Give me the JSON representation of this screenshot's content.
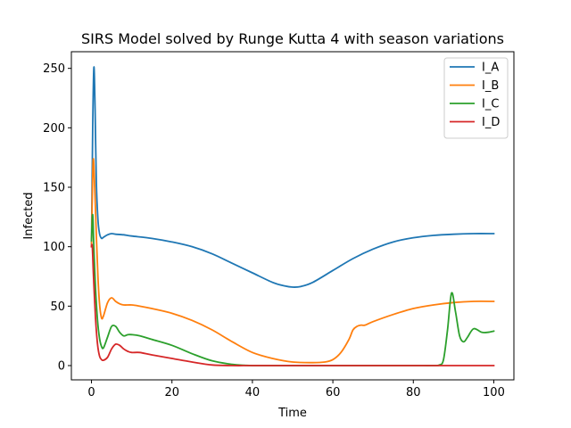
{
  "chart_data": {
    "type": "line",
    "title": "SIRS Model solved by Runge Kutta 4 with season variations",
    "xlabel": "Time",
    "ylabel": "Infected",
    "xlim": [
      -5,
      105
    ],
    "ylim": [
      -12,
      264
    ],
    "xticks": [
      0,
      20,
      40,
      60,
      80,
      100
    ],
    "yticks": [
      0,
      50,
      100,
      150,
      200,
      250
    ],
    "legend_position": "top-right",
    "grid": false,
    "series": [
      {
        "name": "I_A",
        "color": "#1f77b4",
        "x": [
          0,
          0.3,
          0.6,
          0.9,
          1.2,
          1.6,
          2,
          2.5,
          3,
          4,
          5,
          6,
          8,
          10,
          15,
          20,
          25,
          30,
          35,
          40,
          45,
          48,
          50,
          52,
          55,
          60,
          65,
          70,
          75,
          80,
          85,
          90,
          95,
          100
        ],
        "y": [
          100,
          200,
          251,
          215,
          155,
          123,
          111,
          107,
          108,
          110,
          111,
          110.5,
          110,
          109,
          107,
          104,
          100,
          94,
          86,
          78,
          70,
          67,
          66,
          66.5,
          70,
          80,
          90,
          98,
          104,
          107.5,
          109.5,
          110.5,
          111,
          111
        ]
      },
      {
        "name": "I_B",
        "color": "#ff7f0e",
        "x": [
          0,
          0.4,
          0.8,
          1.2,
          1.6,
          2,
          2.5,
          3,
          4,
          5,
          6,
          7,
          8,
          10,
          12,
          15,
          20,
          25,
          30,
          35,
          40,
          45,
          50,
          55,
          58,
          60,
          62,
          64,
          65,
          66,
          67,
          68,
          70,
          75,
          80,
          85,
          90,
          95,
          100
        ],
        "y": [
          100,
          172,
          150,
          110,
          75,
          52,
          40,
          42,
          53,
          57,
          54,
          52,
          51,
          51,
          50,
          48,
          44,
          38,
          30,
          20,
          11,
          6,
          3,
          2.5,
          3,
          5,
          11,
          22,
          30,
          33,
          34,
          34,
          37,
          43,
          48,
          51,
          53,
          54,
          54
        ]
      },
      {
        "name": "I_C",
        "color": "#2ca02c",
        "x": [
          0,
          0.3,
          0.6,
          1,
          1.5,
          2,
          2.5,
          3,
          4,
          5,
          6,
          7,
          8,
          9,
          10,
          12,
          15,
          20,
          25,
          30,
          35,
          38,
          40,
          45,
          50,
          60,
          70,
          80,
          85,
          86.5,
          87.5,
          88.5,
          89.5,
          90.5,
          91.5,
          92.5,
          93.5,
          95,
          97,
          98.5,
          100
        ],
        "y": [
          105,
          127,
          98,
          65,
          38,
          23,
          16,
          15,
          24,
          33,
          33,
          28,
          25,
          26,
          26,
          25,
          22,
          17,
          10,
          4,
          1,
          0.3,
          0,
          0,
          0,
          0,
          0,
          0,
          0,
          0.5,
          5,
          30,
          61,
          45,
          25,
          20,
          24,
          31,
          28,
          28,
          29
        ]
      },
      {
        "name": "I_D",
        "color": "#d62728",
        "x": [
          0,
          0.2,
          0.5,
          1,
          1.5,
          2,
          2.5,
          3,
          4,
          5,
          6,
          7,
          8,
          9,
          10,
          12,
          15,
          20,
          25,
          30,
          35,
          40,
          50,
          60,
          70,
          80,
          90,
          100
        ],
        "y": [
          100,
          100,
          75,
          40,
          18,
          8,
          5,
          4.5,
          7,
          14,
          18,
          17,
          14,
          12,
          11,
          11,
          9,
          6,
          3,
          0.5,
          0,
          0,
          0,
          0,
          0,
          0,
          0,
          0
        ]
      }
    ]
  }
}
